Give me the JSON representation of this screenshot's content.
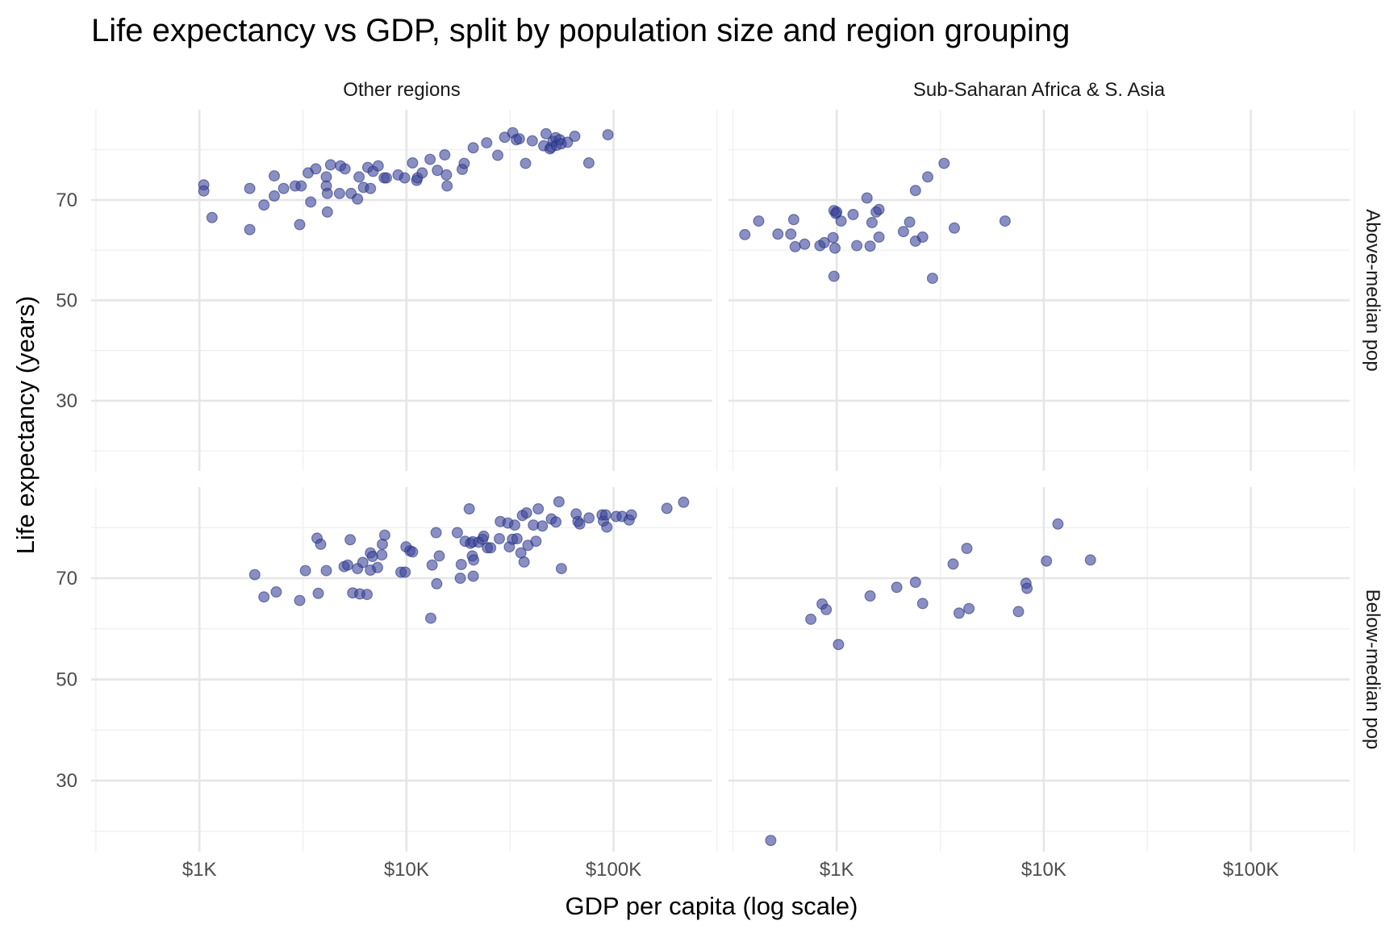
{
  "chart_data": {
    "type": "scatter",
    "title": "Life expectancy vs GDP, split by population size and region grouping",
    "xlabel": "GDP per capita (log scale)",
    "ylabel": "Life expectancy (years)",
    "x_scale": "log10",
    "xlim": [
      300,
      300000
    ],
    "ylim": [
      16,
      88
    ],
    "x_ticks": [
      {
        "value": 1000,
        "label": "$1K"
      },
      {
        "value": 10000,
        "label": "$10K"
      },
      {
        "value": 100000,
        "label": "$100K"
      }
    ],
    "y_ticks": [
      {
        "value": 30,
        "label": "30"
      },
      {
        "value": 50,
        "label": "50"
      },
      {
        "value": 70,
        "label": "70"
      }
    ],
    "grid": true,
    "point_color": "#3a4599",
    "column_strips": [
      "Other regions",
      "Sub-Saharan Africa & S. Asia"
    ],
    "row_strips": [
      "Above-median pop",
      "Below-median pop"
    ],
    "panels": [
      {
        "column": "Other regions",
        "row": "Above-median pop",
        "points": [
          [
            1050,
            73.0
          ],
          [
            1050,
            71.8
          ],
          [
            1150,
            66.5
          ],
          [
            1750,
            72.3
          ],
          [
            1750,
            64.1
          ],
          [
            2050,
            69.0
          ],
          [
            2300,
            74.8
          ],
          [
            2300,
            70.8
          ],
          [
            2550,
            72.3
          ],
          [
            2900,
            72.8
          ],
          [
            3050,
            65.1
          ],
          [
            3100,
            72.8
          ],
          [
            3350,
            75.4
          ],
          [
            3450,
            69.6
          ],
          [
            3650,
            76.2
          ],
          [
            4100,
            74.6
          ],
          [
            4100,
            72.8
          ],
          [
            4150,
            71.3
          ],
          [
            4150,
            67.6
          ],
          [
            4300,
            77.0
          ],
          [
            4750,
            71.3
          ],
          [
            4800,
            76.8
          ],
          [
            5050,
            76.2
          ],
          [
            5400,
            71.3
          ],
          [
            5800,
            70.2
          ],
          [
            5900,
            74.6
          ],
          [
            6200,
            72.5
          ],
          [
            6500,
            76.5
          ],
          [
            6700,
            72.3
          ],
          [
            6900,
            75.7
          ],
          [
            7300,
            76.8
          ],
          [
            7800,
            74.4
          ],
          [
            8000,
            74.4
          ],
          [
            9100,
            75.0
          ],
          [
            9800,
            74.4
          ],
          [
            10700,
            77.4
          ],
          [
            11200,
            73.9
          ],
          [
            11300,
            74.4
          ],
          [
            11900,
            75.4
          ],
          [
            13000,
            78.1
          ],
          [
            14100,
            75.9
          ],
          [
            15300,
            79.0
          ],
          [
            15600,
            75.0
          ],
          [
            15700,
            72.8
          ],
          [
            18600,
            76.1
          ],
          [
            19000,
            77.3
          ],
          [
            21000,
            80.4
          ],
          [
            24400,
            81.4
          ],
          [
            27600,
            78.9
          ],
          [
            29800,
            82.5
          ],
          [
            32600,
            83.4
          ],
          [
            33900,
            82.0
          ],
          [
            35100,
            82.2
          ],
          [
            37600,
            77.3
          ],
          [
            40500,
            81.8
          ],
          [
            46000,
            80.8
          ],
          [
            47200,
            83.2
          ],
          [
            49300,
            80.2
          ],
          [
            50000,
            80.5
          ],
          [
            51000,
            81.7
          ],
          [
            52600,
            82.4
          ],
          [
            53000,
            80.9
          ],
          [
            55000,
            82.0
          ],
          [
            55900,
            81.2
          ],
          [
            59900,
            81.5
          ],
          [
            65000,
            82.7
          ],
          [
            76000,
            77.4
          ],
          [
            94000,
            83.0
          ]
        ]
      },
      {
        "column": "Sub-Saharan Africa & S. Asia",
        "row": "Above-median pop",
        "points": [
          [
            360,
            63.1
          ],
          [
            420,
            65.8
          ],
          [
            520,
            63.2
          ],
          [
            600,
            63.2
          ],
          [
            620,
            66.1
          ],
          [
            630,
            60.7
          ],
          [
            700,
            61.2
          ],
          [
            830,
            60.9
          ],
          [
            870,
            61.5
          ],
          [
            960,
            62.5
          ],
          [
            970,
            67.9
          ],
          [
            980,
            60.4
          ],
          [
            990,
            67.3
          ],
          [
            1000,
            67.6
          ],
          [
            1050,
            65.8
          ],
          [
            1200,
            67.1
          ],
          [
            1250,
            60.9
          ],
          [
            1400,
            70.4
          ],
          [
            1450,
            60.8
          ],
          [
            1480,
            65.5
          ],
          [
            1550,
            67.6
          ],
          [
            1600,
            68.1
          ],
          [
            1600,
            62.6
          ],
          [
            2100,
            63.7
          ],
          [
            2250,
            65.6
          ],
          [
            2400,
            61.8
          ],
          [
            2400,
            71.9
          ],
          [
            2600,
            62.6
          ],
          [
            2750,
            74.6
          ],
          [
            2900,
            54.4
          ],
          [
            3300,
            77.3
          ],
          [
            3700,
            64.4
          ],
          [
            6500,
            65.8
          ],
          [
            970,
            54.8
          ]
        ]
      },
      {
        "column": "Other regions",
        "row": "Below-median pop",
        "points": [
          [
            1850,
            70.7
          ],
          [
            2050,
            66.3
          ],
          [
            2350,
            67.3
          ],
          [
            3050,
            65.6
          ],
          [
            3250,
            71.5
          ],
          [
            3700,
            77.9
          ],
          [
            3750,
            67.0
          ],
          [
            3850,
            76.7
          ],
          [
            4100,
            71.5
          ],
          [
            5000,
            72.3
          ],
          [
            5200,
            72.6
          ],
          [
            5350,
            77.6
          ],
          [
            5500,
            67.1
          ],
          [
            5800,
            71.9
          ],
          [
            5950,
            66.9
          ],
          [
            6150,
            73.1
          ],
          [
            6450,
            66.8
          ],
          [
            6700,
            75.0
          ],
          [
            6700,
            71.6
          ],
          [
            6850,
            74.3
          ],
          [
            7250,
            72.1
          ],
          [
            7600,
            74.6
          ],
          [
            7650,
            76.7
          ],
          [
            7850,
            78.5
          ],
          [
            9400,
            71.2
          ],
          [
            9850,
            71.2
          ],
          [
            9950,
            76.2
          ],
          [
            10400,
            75.4
          ],
          [
            10700,
            75.2
          ],
          [
            13100,
            62.1
          ],
          [
            13300,
            72.6
          ],
          [
            13900,
            79.0
          ],
          [
            14000,
            68.9
          ],
          [
            14400,
            74.4
          ],
          [
            17600,
            79.0
          ],
          [
            18200,
            70.0
          ],
          [
            18400,
            72.7
          ],
          [
            19200,
            77.3
          ],
          [
            20100,
            83.7
          ],
          [
            20400,
            76.9
          ],
          [
            20800,
            74.4
          ],
          [
            20900,
            77.2
          ],
          [
            21000,
            70.4
          ],
          [
            21100,
            73.6
          ],
          [
            22300,
            77.1
          ],
          [
            23300,
            77.7
          ],
          [
            23600,
            78.3
          ],
          [
            24600,
            76.0
          ],
          [
            25500,
            76.0
          ],
          [
            28100,
            77.8
          ],
          [
            28400,
            81.2
          ],
          [
            30900,
            80.9
          ],
          [
            31400,
            76.2
          ],
          [
            32500,
            77.7
          ],
          [
            33300,
            80.5
          ],
          [
            34200,
            77.8
          ],
          [
            35700,
            75.0
          ],
          [
            36300,
            82.4
          ],
          [
            37000,
            73.2
          ],
          [
            38000,
            82.9
          ],
          [
            38600,
            76.5
          ],
          [
            41000,
            80.5
          ],
          [
            42200,
            77.3
          ],
          [
            43300,
            83.7
          ],
          [
            45300,
            80.3
          ],
          [
            50100,
            81.7
          ],
          [
            52700,
            81.1
          ],
          [
            54500,
            85.1
          ],
          [
            56000,
            71.9
          ],
          [
            66000,
            82.7
          ],
          [
            67300,
            81.2
          ],
          [
            68700,
            80.7
          ],
          [
            76100,
            81.9
          ],
          [
            88000,
            82.5
          ],
          [
            89400,
            81.3
          ],
          [
            91600,
            82.5
          ],
          [
            92800,
            80.1
          ],
          [
            103000,
            82.2
          ],
          [
            110000,
            82.2
          ],
          [
            119000,
            81.5
          ],
          [
            122000,
            82.5
          ],
          [
            181000,
            83.8
          ],
          [
            218000,
            85.0
          ]
        ]
      },
      {
        "column": "Sub-Saharan Africa & S. Asia",
        "row": "Below-median pop",
        "points": [
          [
            480,
            18.2
          ],
          [
            750,
            61.9
          ],
          [
            850,
            64.9
          ],
          [
            890,
            63.8
          ],
          [
            1020,
            56.9
          ],
          [
            1450,
            66.5
          ],
          [
            1950,
            68.2
          ],
          [
            2400,
            69.2
          ],
          [
            2600,
            65.0
          ],
          [
            3650,
            72.8
          ],
          [
            3900,
            63.1
          ],
          [
            4250,
            75.9
          ],
          [
            4350,
            64.0
          ],
          [
            7550,
            63.4
          ],
          [
            8200,
            69.0
          ],
          [
            8300,
            68.0
          ],
          [
            10300,
            73.4
          ],
          [
            11700,
            80.7
          ],
          [
            16800,
            73.6
          ]
        ]
      }
    ]
  }
}
